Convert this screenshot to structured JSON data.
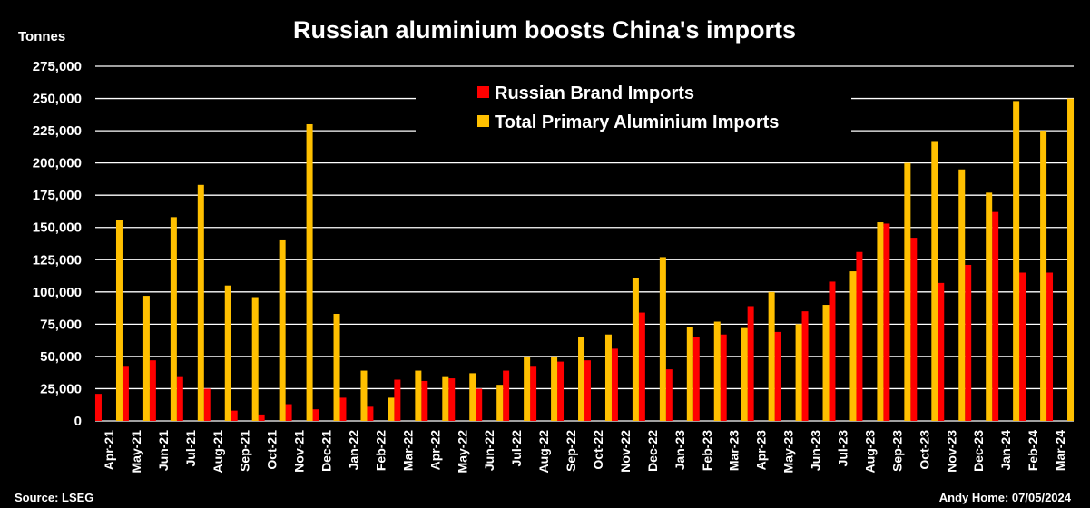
{
  "chart_data": {
    "type": "bar",
    "title": "Russian aluminium boosts China's imports",
    "ylabel": "Tonnes",
    "xlabel": "",
    "ylim": [
      0,
      275000
    ],
    "ytick_values": [
      0,
      25000,
      50000,
      75000,
      100000,
      125000,
      150000,
      175000,
      200000,
      225000,
      250000,
      275000
    ],
    "ytick_labels": [
      "0",
      "25,000",
      "50,000",
      "75,000",
      "100,000",
      "125,000",
      "150,000",
      "175,000",
      "200,000",
      "225,000",
      "250,000",
      "275,000"
    ],
    "grid": true,
    "legend_position": "top",
    "categories": [
      "Apr-21",
      "May-21",
      "Jun-21",
      "Jul-21",
      "Aug-21",
      "Sep-21",
      "Oct-21",
      "Nov-21",
      "Dec-21",
      "Jan-22",
      "Feb-22",
      "Mar-22",
      "Apr-22",
      "May-22",
      "Jun-22",
      "Jul-22",
      "Aug-22",
      "Sep-22",
      "Oct-22",
      "Nov-22",
      "Dec-22",
      "Jan-23",
      "Feb-23",
      "Mar-23",
      "Apr-23",
      "May-23",
      "Jun-23",
      "Jul-23",
      "Aug-23",
      "Sep-23",
      "Oct-23",
      "Nov-23",
      "Dec-23",
      "Jan-24",
      "Feb-24",
      "Mar-24"
    ],
    "series": [
      {
        "name": "Russian Brand Imports",
        "color": "#ff0000",
        "values": [
          21000,
          42000,
          47000,
          34000,
          25000,
          8000,
          5000,
          13000,
          9000,
          18000,
          11000,
          32000,
          31000,
          33000,
          25000,
          39000,
          42000,
          46000,
          47000,
          56000,
          84000,
          40000,
          65000,
          67000,
          89000,
          69000,
          85000,
          108000,
          131000,
          153000,
          142000,
          107000,
          121000,
          162000,
          115000,
          115000
        ]
      },
      {
        "name": "Total Primary Aluminium Imports",
        "color": "#ffc000",
        "values": [
          156000,
          97000,
          158000,
          183000,
          105000,
          96000,
          140000,
          230000,
          83000,
          39000,
          18000,
          39000,
          34000,
          37000,
          28000,
          50000,
          50000,
          65000,
          67000,
          111000,
          127000,
          73000,
          77000,
          72000,
          100000,
          75000,
          90000,
          116000,
          154000,
          200000,
          217000,
          195000,
          177000,
          248000,
          225000,
          250000
        ]
      }
    ],
    "source": "Source: LSEG",
    "credit": "Andy Home: 07/05/2024"
  }
}
